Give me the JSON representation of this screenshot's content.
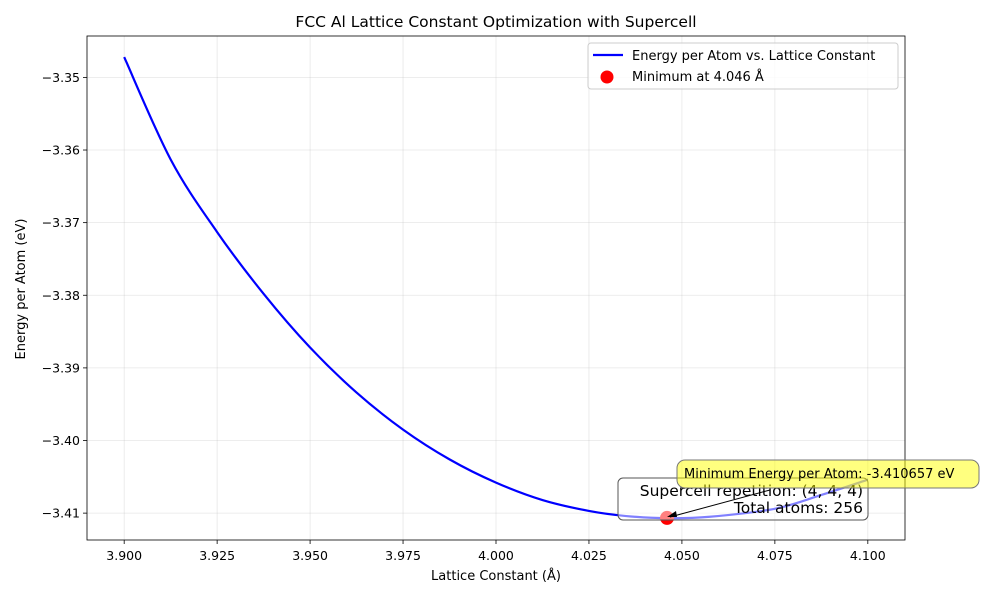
{
  "chart_data": {
    "type": "line",
    "title": "FCC Al Lattice Constant Optimization with Supercell",
    "xlabel": "Lattice Constant (Å)",
    "ylabel": "Energy per Atom (eV)",
    "xlim": [
      3.89,
      4.11
    ],
    "ylim": [
      -3.4137,
      -3.3443
    ],
    "xticks": [
      3.9,
      3.925,
      3.95,
      3.975,
      4.0,
      4.025,
      4.05,
      4.075,
      4.1
    ],
    "xtick_labels": [
      "3.900",
      "3.925",
      "3.950",
      "3.975",
      "4.000",
      "4.025",
      "4.050",
      "4.075",
      "4.100"
    ],
    "yticks": [
      -3.41,
      -3.4,
      -3.39,
      -3.38,
      -3.37,
      -3.36,
      -3.35
    ],
    "ytick_labels": [
      "−3.41",
      "−3.40",
      "−3.39",
      "−3.38",
      "−3.37",
      "−3.36",
      "−3.35"
    ],
    "grid": true,
    "legend_position": "upper right",
    "series": [
      {
        "name": "Energy per Atom vs. Lattice Constant",
        "color": "#0000ff",
        "x": [
          3.9,
          3.9125,
          3.925,
          3.9375,
          3.95,
          3.9625,
          3.975,
          3.9875,
          4.0,
          4.0125,
          4.025,
          4.035,
          4.046,
          4.0575,
          4.075,
          4.0875,
          4.1
        ],
        "y": [
          -3.3472,
          -3.3613,
          -3.3713,
          -3.3798,
          -3.3872,
          -3.3934,
          -3.3985,
          -3.4026,
          -3.4058,
          -3.4082,
          -3.4097,
          -3.4104,
          -3.4107,
          -3.4105,
          -3.4094,
          -3.4075,
          -3.4054
        ]
      }
    ],
    "marker": {
      "label": "Minimum at 4.046 Å",
      "x": 4.046,
      "y": -3.410657,
      "color": "#ff0000"
    },
    "annotations": {
      "minimum_energy": "Minimum Energy per Atom: -3.410657 eV",
      "supercell_line1": "Supercell repetition: (4, 4, 4)",
      "supercell_line2": "Total atoms: 256"
    }
  }
}
